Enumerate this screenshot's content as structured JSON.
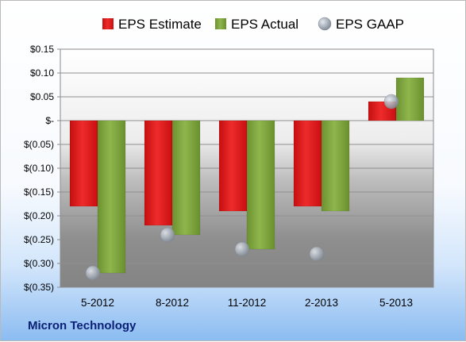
{
  "company": "Micron Technology",
  "chart_data": {
    "type": "bar",
    "categories": [
      "5-2012",
      "8-2012",
      "11-2012",
      "2-2013",
      "5-2013"
    ],
    "series": [
      {
        "name": "EPS Estimate",
        "kind": "bar",
        "color": "#e01c1c",
        "values": [
          -0.18,
          -0.22,
          -0.19,
          -0.18,
          0.04
        ]
      },
      {
        "name": "EPS Actual",
        "kind": "bar",
        "color": "#7fa63a",
        "values": [
          -0.32,
          -0.24,
          -0.27,
          -0.19,
          0.09
        ]
      },
      {
        "name": "EPS GAAP",
        "kind": "marker",
        "color": "#a9b1bc",
        "values": [
          -0.32,
          -0.24,
          -0.27,
          -0.28,
          0.04
        ]
      }
    ],
    "ylim": [
      -0.35,
      0.15
    ],
    "yticks": [
      0.15,
      0.1,
      0.05,
      0.0,
      -0.05,
      -0.1,
      -0.15,
      -0.2,
      -0.25,
      -0.3,
      -0.35
    ],
    "ytick_labels": [
      "$0.15",
      "$0.10",
      "$0.05",
      "$-",
      "$(0.05)",
      "$(0.10)",
      "$(0.15)",
      "$(0.20)",
      "$(0.25)",
      "$(0.30)",
      "$(0.35)"
    ],
    "grid": true,
    "legend_position": "top"
  }
}
